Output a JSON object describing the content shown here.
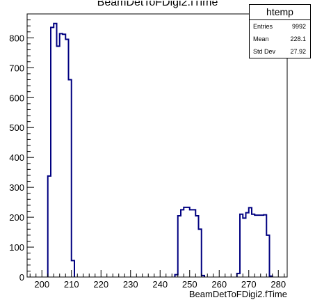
{
  "chart_data": {
    "type": "bar",
    "title": "BeamDetToFDigi2.fTime",
    "xlabel": "BeamDetToFDigi2.fTime",
    "ylabel": "",
    "xlim": [
      195,
      283
    ],
    "ylim": [
      0,
      880
    ],
    "bin_width": 1,
    "x_ticks": [
      200,
      210,
      220,
      230,
      240,
      250,
      260,
      270,
      280
    ],
    "y_ticks": [
      0,
      100,
      200,
      300,
      400,
      500,
      600,
      700,
      800
    ],
    "grid": false,
    "legend": "top-right",
    "series": [
      {
        "color": "#000080",
        "bins": [
          {
            "x": 202,
            "y": 338
          },
          {
            "x": 203,
            "y": 835
          },
          {
            "x": 204,
            "y": 848
          },
          {
            "x": 205,
            "y": 772
          },
          {
            "x": 206,
            "y": 814
          },
          {
            "x": 207,
            "y": 812
          },
          {
            "x": 208,
            "y": 795
          },
          {
            "x": 209,
            "y": 660
          },
          {
            "x": 210,
            "y": 55
          },
          {
            "x": 245,
            "y": 8
          },
          {
            "x": 246,
            "y": 205
          },
          {
            "x": 247,
            "y": 225
          },
          {
            "x": 248,
            "y": 233
          },
          {
            "x": 249,
            "y": 233
          },
          {
            "x": 250,
            "y": 225
          },
          {
            "x": 251,
            "y": 225
          },
          {
            "x": 252,
            "y": 205
          },
          {
            "x": 253,
            "y": 160
          },
          {
            "x": 254,
            "y": 5
          },
          {
            "x": 266,
            "y": 12
          },
          {
            "x": 267,
            "y": 210
          },
          {
            "x": 268,
            "y": 197
          },
          {
            "x": 269,
            "y": 215
          },
          {
            "x": 270,
            "y": 232
          },
          {
            "x": 271,
            "y": 210
          },
          {
            "x": 272,
            "y": 207
          },
          {
            "x": 273,
            "y": 207
          },
          {
            "x": 274,
            "y": 207
          },
          {
            "x": 275,
            "y": 208
          },
          {
            "x": 276,
            "y": 140
          },
          {
            "x": 277,
            "y": 3
          }
        ]
      }
    ],
    "stats": {
      "name": "htemp",
      "rows": [
        {
          "label": "Entries",
          "value": "9992"
        },
        {
          "label": "Mean",
          "value": "228.1"
        },
        {
          "label": "Std Dev",
          "value": "27.92"
        }
      ]
    }
  }
}
